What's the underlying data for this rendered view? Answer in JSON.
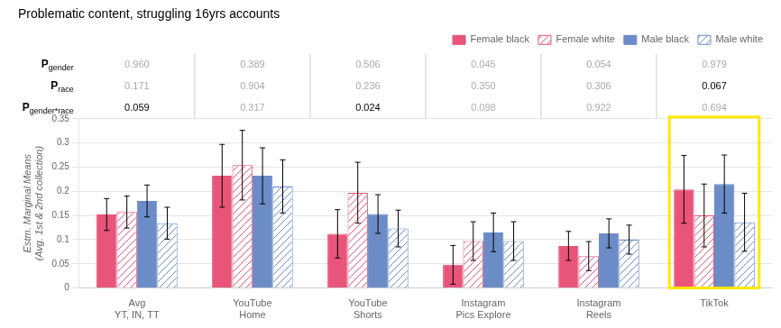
{
  "chart_data": {
    "type": "bar",
    "title": "Problematic content, struggling 16yrs accounts",
    "ylabel": "Estm. Marginal Means\n(Avg. 1st & 2nd collection)",
    "categories": [
      "Avg\nYT, IN, TT",
      "YouTube\nHome",
      "YouTube\nShorts",
      "Instagram\nPics Explore",
      "Instagram\nReels",
      "TikTok"
    ],
    "series": [
      {
        "name": "Female black",
        "color": "#E8547A",
        "values": [
          0.152,
          0.232,
          0.112,
          0.048,
          0.087,
          0.204
        ],
        "errors": [
          0.033,
          0.065,
          0.05,
          0.04,
          0.03,
          0.07
        ]
      },
      {
        "name": "Female white",
        "color": "#E8547A",
        "values": [
          0.157,
          0.254,
          0.197,
          0.097,
          0.066,
          0.15
        ],
        "errors": [
          0.033,
          0.072,
          0.063,
          0.04,
          0.03,
          0.065
        ]
      },
      {
        "name": "Male black",
        "color": "#6B8CC7",
        "values": [
          0.18,
          0.232,
          0.153,
          0.115,
          0.113,
          0.215
        ],
        "errors": [
          0.033,
          0.058,
          0.04,
          0.04,
          0.03,
          0.06
        ]
      },
      {
        "name": "Male white",
        "color": "#6B8CC7",
        "values": [
          0.134,
          0.21,
          0.123,
          0.097,
          0.1,
          0.136
        ],
        "errors": [
          0.033,
          0.055,
          0.038,
          0.04,
          0.03,
          0.06
        ]
      }
    ],
    "ylim": [
      0,
      0.35
    ],
    "yticks": [
      0,
      0.05,
      0.1,
      0.15,
      0.2,
      0.25,
      0.3,
      0.35
    ],
    "grid": true,
    "legend": "upper right",
    "p_values": [
      {
        "label": "P",
        "subscript": "gender",
        "values": [
          "0.960",
          "0.389",
          "0.506",
          "0.045",
          "0.054",
          "0.979"
        ],
        "colors": [
          "#AAAAAA",
          "#AAAAAA",
          "#AAAAAA",
          "#AAAAAA",
          "#AAAAAA",
          "#AAAAAA"
        ]
      },
      {
        "label": "P",
        "subscript": "race",
        "values": [
          "0.171",
          "0.904",
          "0.236",
          "0.350",
          "0.306",
          "0.067"
        ],
        "colors": [
          "#AAAAAA",
          "#AAAAAA",
          "#AAAAAA",
          "#AAAAAA",
          "#AAAAAA",
          "#000000"
        ]
      },
      {
        "label": "P",
        "subscript": "gender*race",
        "values": [
          "0.059",
          "0.317",
          "0.024",
          "0.098",
          "0.922",
          "0.694"
        ],
        "colors": [
          "#000000",
          "#AAAAAA",
          "#000000",
          "#AAAAAA",
          "#AAAAAA",
          "#AAAAAA"
        ]
      }
    ],
    "highlight": {
      "category": "TikTok",
      "color": "#FFE800"
    }
  }
}
